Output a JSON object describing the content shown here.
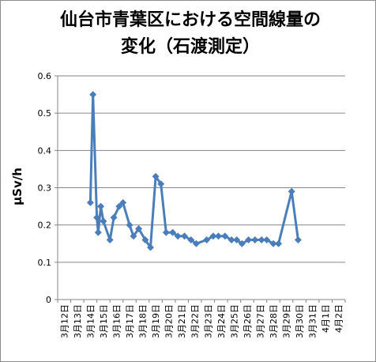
{
  "chart_data": {
    "type": "line",
    "title_line1": "仙台市青葉区における空間線量の",
    "title_line2": "変化（石渡測定）",
    "ylabel": "μSv/h",
    "xlabel": "",
    "ylim": [
      0,
      0.6
    ],
    "yticks": [
      "0",
      "0.1",
      "0.2",
      "0.3",
      "0.4",
      "0.5",
      "0.6"
    ],
    "categories": [
      "3月12日",
      "3月13日",
      "3月14日",
      "3月15日",
      "3月16日",
      "3月17日",
      "3月18日",
      "3月19日",
      "3月20日",
      "3月21日",
      "3月22日",
      "3月23日",
      "3月24日",
      "3月25日",
      "3月26日",
      "3月27日",
      "3月28日",
      "3月29日",
      "3月30日",
      "3月31日",
      "4月1日",
      "4月2日"
    ],
    "grid": "horizontal",
    "legend": "none",
    "series": [
      {
        "color": "#4a7ebb",
        "points": [
          {
            "x": 2.0,
            "y": 0.26
          },
          {
            "x": 2.2,
            "y": 0.55
          },
          {
            "x": 2.5,
            "y": 0.22
          },
          {
            "x": 2.6,
            "y": 0.18
          },
          {
            "x": 2.8,
            "y": 0.25
          },
          {
            "x": 3.0,
            "y": 0.21
          },
          {
            "x": 3.5,
            "y": 0.16
          },
          {
            "x": 3.8,
            "y": 0.22
          },
          {
            "x": 4.2,
            "y": 0.25
          },
          {
            "x": 4.5,
            "y": 0.26
          },
          {
            "x": 5.0,
            "y": 0.2
          },
          {
            "x": 5.3,
            "y": 0.17
          },
          {
            "x": 5.7,
            "y": 0.19
          },
          {
            "x": 6.2,
            "y": 0.16
          },
          {
            "x": 6.6,
            "y": 0.14
          },
          {
            "x": 7.0,
            "y": 0.33
          },
          {
            "x": 7.4,
            "y": 0.31
          },
          {
            "x": 7.8,
            "y": 0.18
          },
          {
            "x": 8.3,
            "y": 0.18
          },
          {
            "x": 8.7,
            "y": 0.17
          },
          {
            "x": 9.2,
            "y": 0.17
          },
          {
            "x": 9.7,
            "y": 0.16
          },
          {
            "x": 10.1,
            "y": 0.15
          },
          {
            "x": 10.9,
            "y": 0.16
          },
          {
            "x": 11.4,
            "y": 0.17
          },
          {
            "x": 11.8,
            "y": 0.17
          },
          {
            "x": 12.3,
            "y": 0.17
          },
          {
            "x": 12.8,
            "y": 0.16
          },
          {
            "x": 13.2,
            "y": 0.16
          },
          {
            "x": 13.6,
            "y": 0.15
          },
          {
            "x": 14.1,
            "y": 0.16
          },
          {
            "x": 14.6,
            "y": 0.16
          },
          {
            "x": 15.1,
            "y": 0.16
          },
          {
            "x": 15.5,
            "y": 0.16
          },
          {
            "x": 16.0,
            "y": 0.15
          },
          {
            "x": 16.4,
            "y": 0.15
          },
          {
            "x": 17.4,
            "y": 0.29
          },
          {
            "x": 17.9,
            "y": 0.16
          }
        ]
      }
    ]
  }
}
